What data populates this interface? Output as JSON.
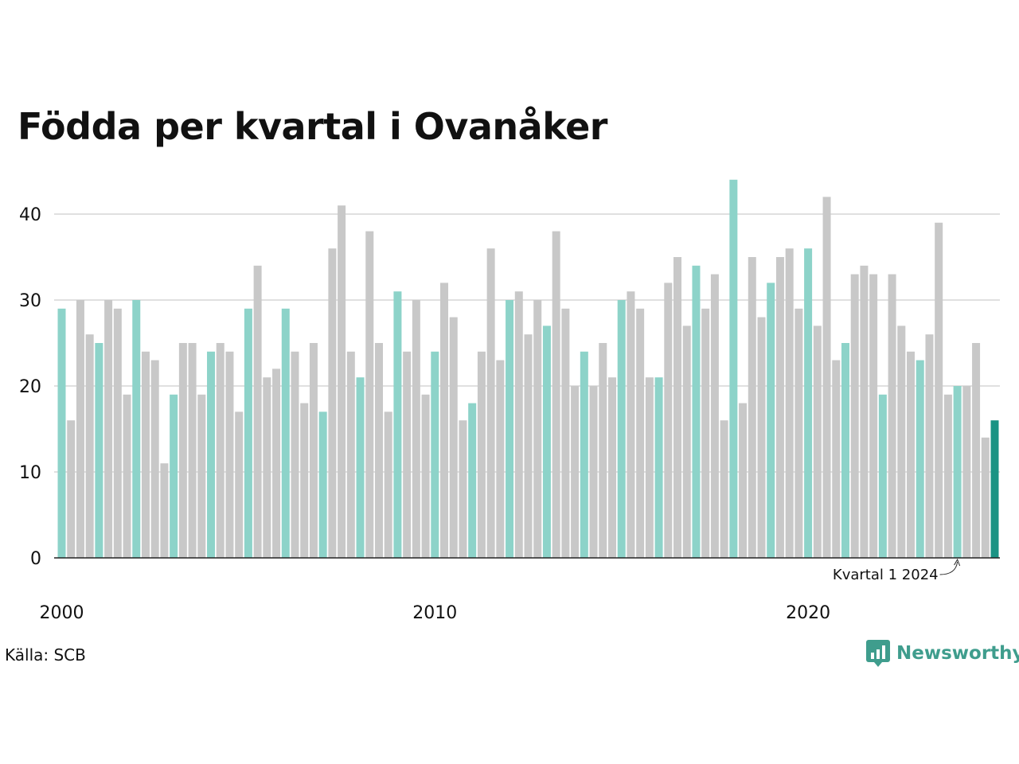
{
  "chart_data": {
    "type": "bar",
    "title": "Födda per kvartal i Ovanåker",
    "xlabel": "",
    "ylabel": "",
    "ylim": [
      0,
      44
    ],
    "yticks": [
      0,
      10,
      20,
      30,
      40
    ],
    "xtick_labels": [
      "2000",
      "2010",
      "2020"
    ],
    "grid": true,
    "start_year": 2000,
    "quarters_per_year": 4,
    "values": [
      29,
      16,
      30,
      26,
      25,
      30,
      29,
      19,
      30,
      24,
      23,
      11,
      19,
      25,
      25,
      19,
      24,
      25,
      24,
      17,
      29,
      34,
      21,
      22,
      29,
      24,
      18,
      25,
      17,
      36,
      41,
      24,
      21,
      38,
      25,
      17,
      31,
      24,
      30,
      19,
      24,
      32,
      28,
      16,
      18,
      24,
      36,
      23,
      30,
      31,
      26,
      30,
      27,
      38,
      29,
      20,
      24,
      20,
      25,
      21,
      30,
      31,
      29,
      21,
      21,
      32,
      35,
      27,
      34,
      29,
      33,
      16,
      44,
      18,
      35,
      28,
      32,
      35,
      36,
      29,
      36,
      27,
      42,
      23,
      25,
      33,
      34,
      33,
      19,
      33,
      27,
      24,
      23,
      26,
      39,
      19,
      20,
      20,
      25,
      14,
      16
    ],
    "colors": {
      "quarter1": "#8dd3c9",
      "other": "#c8c8c8",
      "latest": "#1a9384",
      "axis": "#222222",
      "grid": "#e0e0e0"
    },
    "annotation": "Kvartal 1 2024"
  },
  "source": "Källa: SCB",
  "brand": {
    "name": "Newsworthy",
    "icon": "newsworthy-chart-icon",
    "color": "#3f9d8d"
  }
}
